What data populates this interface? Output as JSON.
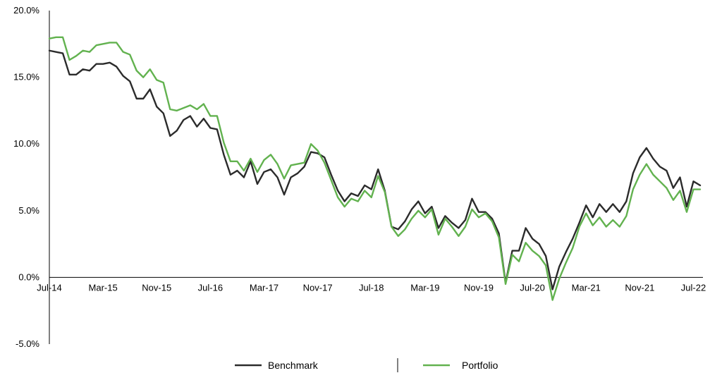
{
  "chart_data": {
    "type": "line",
    "title": "",
    "xlabel": "",
    "ylabel": "",
    "ylim": [
      -5,
      20
    ],
    "yticks": [
      "-5.0%",
      "0.0%",
      "5.0%",
      "10.0%",
      "15.0%",
      "20.0%"
    ],
    "ytick_values": [
      -5,
      0,
      5,
      10,
      15,
      20
    ],
    "xticks": [
      "Jul-14",
      "Mar-15",
      "Nov-15",
      "Jul-16",
      "Mar-17",
      "Nov-17",
      "Jul-18",
      "Mar-19",
      "Nov-19",
      "Jul-20",
      "Mar-21",
      "Nov-21",
      "Jul-22"
    ],
    "grid": false,
    "legend": "bottom",
    "x_start": "Jul-14",
    "x_end": "Jul-22",
    "series": [
      {
        "name": "Benchmark",
        "color": "#2b2b2b",
        "values": [
          17.0,
          16.9,
          16.8,
          15.2,
          15.2,
          15.6,
          15.5,
          16.0,
          16.0,
          16.1,
          15.8,
          15.1,
          14.7,
          13.4,
          13.4,
          14.1,
          12.8,
          12.3,
          10.6,
          11.0,
          11.8,
          12.1,
          11.3,
          11.9,
          11.2,
          11.1,
          9.2,
          7.7,
          8.0,
          7.5,
          8.7,
          7.0,
          7.9,
          8.1,
          7.5,
          6.2,
          7.5,
          7.8,
          8.3,
          9.4,
          9.3,
          9.0,
          7.7,
          6.5,
          5.7,
          6.3,
          6.1,
          6.9,
          6.6,
          8.1,
          6.5,
          3.8,
          3.6,
          4.2,
          5.1,
          5.7,
          4.8,
          5.3,
          3.7,
          4.6,
          4.1,
          3.7,
          4.3,
          5.9,
          4.9,
          4.9,
          4.4,
          3.3,
          -0.4,
          2.0,
          2.0,
          3.7,
          2.9,
          2.5,
          1.6,
          -0.9,
          0.8,
          1.9,
          2.9,
          4.1,
          5.4,
          4.5,
          5.5,
          4.9,
          5.5,
          4.9,
          5.7,
          7.8,
          9.0,
          9.7,
          8.9,
          8.3,
          8.0,
          6.7,
          7.5,
          5.3,
          7.2,
          6.9
        ]
      },
      {
        "name": "Portfolio",
        "color": "#62b24f",
        "values": [
          17.9,
          18.0,
          18.0,
          16.3,
          16.6,
          17.0,
          16.9,
          17.4,
          17.5,
          17.6,
          17.6,
          16.9,
          16.7,
          15.5,
          15.0,
          15.6,
          14.8,
          14.6,
          12.6,
          12.5,
          12.7,
          12.9,
          12.6,
          13.0,
          12.1,
          12.1,
          10.1,
          8.7,
          8.7,
          8.0,
          8.9,
          7.9,
          8.8,
          9.2,
          8.5,
          7.4,
          8.4,
          8.5,
          8.6,
          10.0,
          9.5,
          8.6,
          7.3,
          6.0,
          5.3,
          5.9,
          5.7,
          6.5,
          6.0,
          7.6,
          6.4,
          3.8,
          3.1,
          3.6,
          4.4,
          5.0,
          4.5,
          5.1,
          3.2,
          4.4,
          3.8,
          3.1,
          3.8,
          5.1,
          4.5,
          4.8,
          4.2,
          3.0,
          -0.5,
          1.7,
          1.2,
          2.6,
          2.0,
          1.6,
          0.9,
          -1.7,
          -0.1,
          1.1,
          2.2,
          3.8,
          4.8,
          3.9,
          4.5,
          3.8,
          4.3,
          3.8,
          4.6,
          6.6,
          7.7,
          8.5,
          7.7,
          7.2,
          6.7,
          5.8,
          6.5,
          4.9,
          6.6,
          6.6
        ]
      }
    ]
  }
}
